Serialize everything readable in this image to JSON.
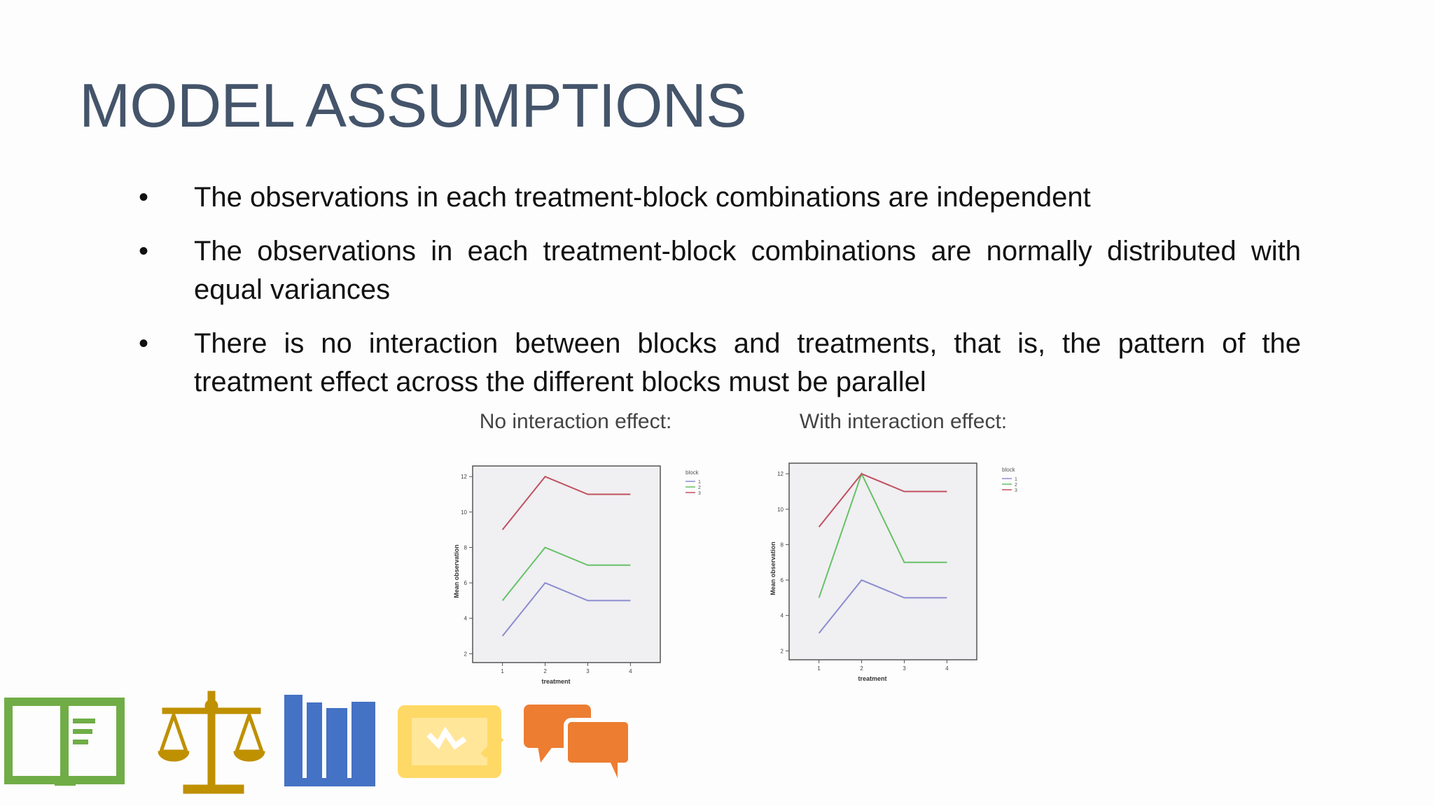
{
  "slide": {
    "title": "MODEL ASSUMPTIONS",
    "bullets": [
      "The observations in each treatment-block combinations are independent",
      "The observations in each treatment-block combinations are normally distributed with equal variances",
      "There is no interaction between blocks and treatments, that is, the pattern of the treatment effect across the different blocks must be parallel"
    ]
  },
  "chart_data": [
    {
      "type": "line",
      "title": "No interaction effect:",
      "x_label": "treatment",
      "y_label": "Mean observation",
      "legend_title": "block",
      "x": [
        1,
        2,
        3,
        4
      ],
      "series": [
        {
          "name": "1",
          "color": "#8c8cd0",
          "values": [
            3,
            6,
            5,
            5
          ]
        },
        {
          "name": "2",
          "color": "#66c266",
          "values": [
            5,
            8,
            7,
            7
          ]
        },
        {
          "name": "3",
          "color": "#c0505f",
          "values": [
            9,
            12,
            11,
            11
          ]
        }
      ],
      "xlim": [
        0.3,
        4.7
      ],
      "xticks": [
        1,
        2,
        3,
        4
      ],
      "ylim": [
        1.5,
        12.6
      ],
      "yticks": [
        2,
        4,
        6,
        8,
        10,
        12
      ]
    },
    {
      "type": "line",
      "title": "With interaction effect:",
      "x_label": "treatment",
      "y_label": "Mean observation",
      "legend_title": "block",
      "x": [
        1,
        2,
        3,
        4
      ],
      "series": [
        {
          "name": "1",
          "color": "#8c8cd0",
          "values": [
            3,
            6,
            5,
            5
          ]
        },
        {
          "name": "2",
          "color": "#66c266",
          "values": [
            5,
            12,
            7,
            7
          ]
        },
        {
          "name": "3",
          "color": "#c0505f",
          "values": [
            9,
            12,
            11,
            11
          ]
        }
      ],
      "xlim": [
        0.3,
        4.7
      ],
      "xticks": [
        1,
        2,
        3,
        4
      ],
      "ylim": [
        1.5,
        12.6
      ],
      "yticks": [
        2,
        4,
        6,
        8,
        10,
        12
      ]
    }
  ]
}
